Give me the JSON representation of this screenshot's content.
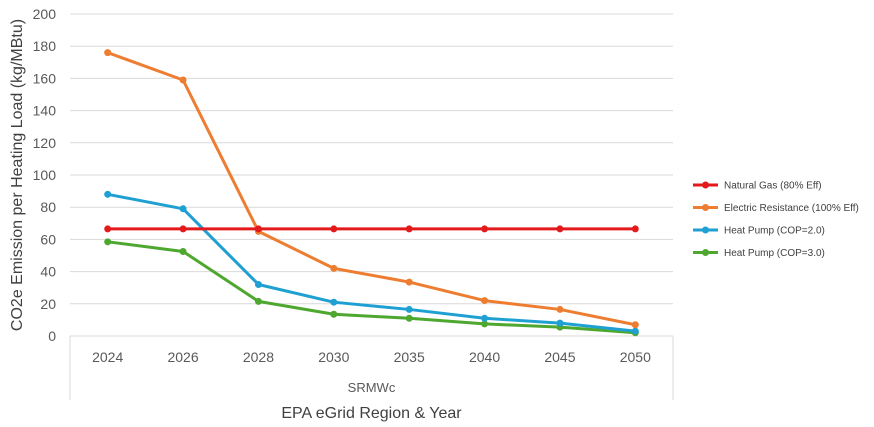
{
  "chart_data": {
    "type": "line",
    "title": "",
    "categories": [
      "2024",
      "2026",
      "2028",
      "2030",
      "2035",
      "2040",
      "2045",
      "2050"
    ],
    "group_label": "SRMWc",
    "xlabel": "EPA eGrid Region & Year",
    "ylabel": "CO2e Emission per Heating Load (kg/MBtu)",
    "ylim": [
      0,
      200
    ],
    "yticks": [
      0,
      20,
      40,
      60,
      80,
      100,
      120,
      140,
      160,
      180,
      200
    ],
    "grid": true,
    "legend_position": "right",
    "series": [
      {
        "name": "Natural Gas (80% Eff)",
        "color": "#e31a1c",
        "values": [
          66.5,
          66.5,
          66.5,
          66.5,
          66.5,
          66.5,
          66.5,
          66.5
        ]
      },
      {
        "name": "Electric Resistance (100% Eff)",
        "color": "#ed7d31",
        "values": [
          176,
          159,
          65,
          42,
          33.5,
          22,
          16.5,
          7
        ]
      },
      {
        "name": "Heat Pump (COP=2.0)",
        "color": "#1fa0d2",
        "values": [
          88,
          79,
          32,
          21,
          16.5,
          11,
          8,
          3
        ]
      },
      {
        "name": "Heat Pump (COP=3.0)",
        "color": "#4ea72e",
        "values": [
          58.5,
          52.5,
          21.5,
          13.5,
          11,
          7.5,
          5.5,
          2
        ]
      }
    ]
  }
}
